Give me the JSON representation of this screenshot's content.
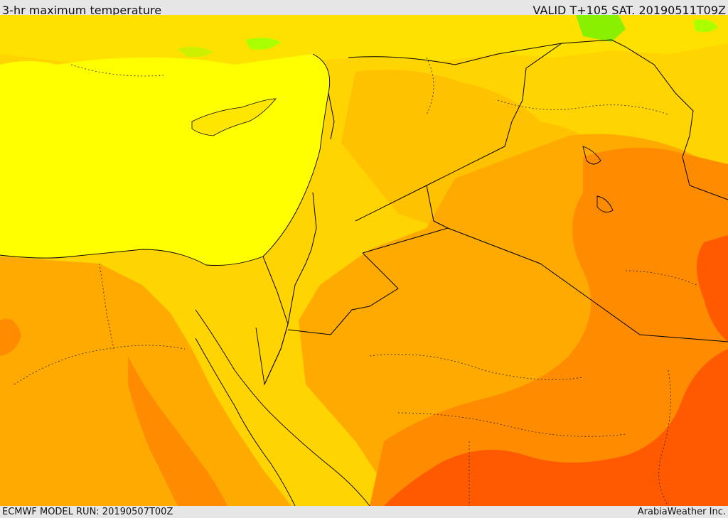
{
  "header": {
    "title": "3-hr maximum temperature",
    "valid_time": "VALID T+105 SAT. 20190511T09Z"
  },
  "footer": {
    "model_run": "ECMWF MODEL RUN: 20190507T00Z",
    "credit": "ArabiaWeather Inc."
  },
  "colors": {
    "sea_yellow": "#ffff00",
    "light_yellow": "#ffe100",
    "gold": "#ffd400",
    "light_orange": "#ffc200",
    "orange": "#ffaa00",
    "dark_orange": "#ff8c00",
    "red_orange": "#ff5a00",
    "green": "#aaff00",
    "border_line": "#000000"
  }
}
